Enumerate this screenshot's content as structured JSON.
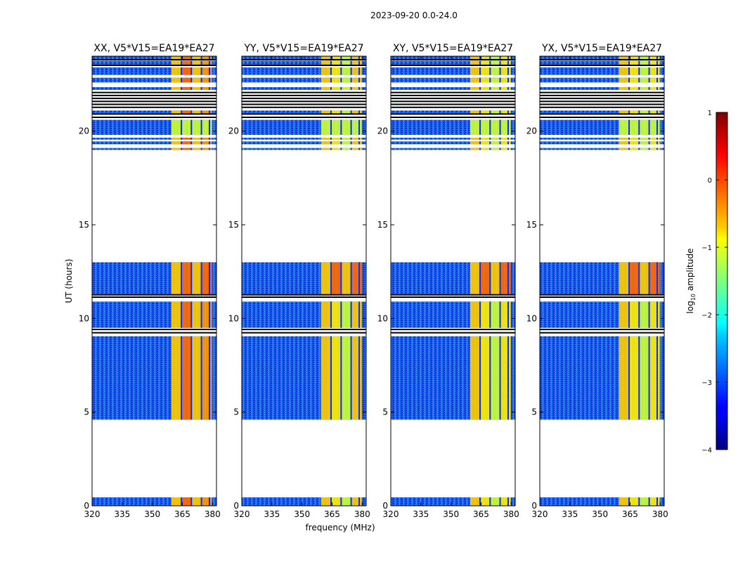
{
  "chart_data": {
    "type": "heatmap",
    "title": "2023-09-20 0.0-24.0",
    "xlabel": "frequency (MHz)",
    "ylabel": "UT (hours)",
    "xlim": [
      320,
      382
    ],
    "ylim": [
      0,
      24
    ],
    "xticks": [
      320,
      335,
      350,
      365,
      380
    ],
    "yticks": [
      0,
      5,
      10,
      15,
      20
    ],
    "panels": [
      {
        "title": "XX, V5*V15=EA19*EA27"
      },
      {
        "title": "YY, V5*V15=EA19*EA27"
      },
      {
        "title": "XY, V5*V15=EA19*EA27"
      },
      {
        "title": "YX, V5*V15=EA19*EA27"
      }
    ],
    "colorbar": {
      "label": "log10 amplitude",
      "label_main": "log",
      "label_sub": "10",
      "label_rest": " amplitude",
      "range": [
        -4,
        1
      ],
      "ticks": [
        1,
        0,
        -1,
        -2,
        -3,
        -4
      ],
      "colormap": "jet"
    },
    "data_blocks_ut": [
      [
        0,
        0.45
      ],
      [
        4.6,
        9.05
      ],
      [
        9.5,
        10.9
      ],
      [
        11.3,
        13.0
      ],
      [
        19.0,
        19.1
      ],
      [
        19.3,
        19.45
      ],
      [
        19.55,
        19.65
      ],
      [
        19.8,
        20.6
      ],
      [
        20.95,
        21.1
      ],
      [
        22.2,
        22.35
      ],
      [
        22.6,
        22.85
      ],
      [
        23.0,
        23.4
      ],
      [
        23.55,
        23.75
      ],
      [
        23.85,
        24.0
      ]
    ],
    "flagged_ut": [
      [
        9.1,
        9.45
      ],
      [
        11.05,
        11.3
      ],
      [
        20.6,
        20.95
      ],
      [
        21.15,
        22.1
      ],
      [
        23.4,
        23.55
      ],
      [
        23.75,
        23.85
      ]
    ],
    "rfi_band_mhz": [
      359.5,
      379.8
    ],
    "rfi_gap_channels_mhz": [
      364.5,
      369.5,
      374.5,
      378.5
    ]
  }
}
